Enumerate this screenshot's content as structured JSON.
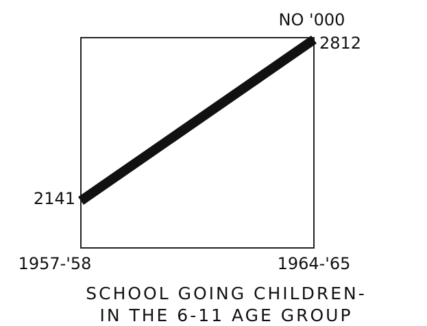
{
  "chart_data": {
    "type": "line",
    "title": "SCHOOL GOING CHILDREN-",
    "subtitle": "IN THE 6-11 AGE GROUP",
    "ylabel": "NO '000",
    "categories": [
      "1957-'58",
      "1964-'65"
    ],
    "values": [
      2141,
      2812
    ],
    "color": "#111111",
    "ylim": [
      1945,
      2820
    ]
  }
}
